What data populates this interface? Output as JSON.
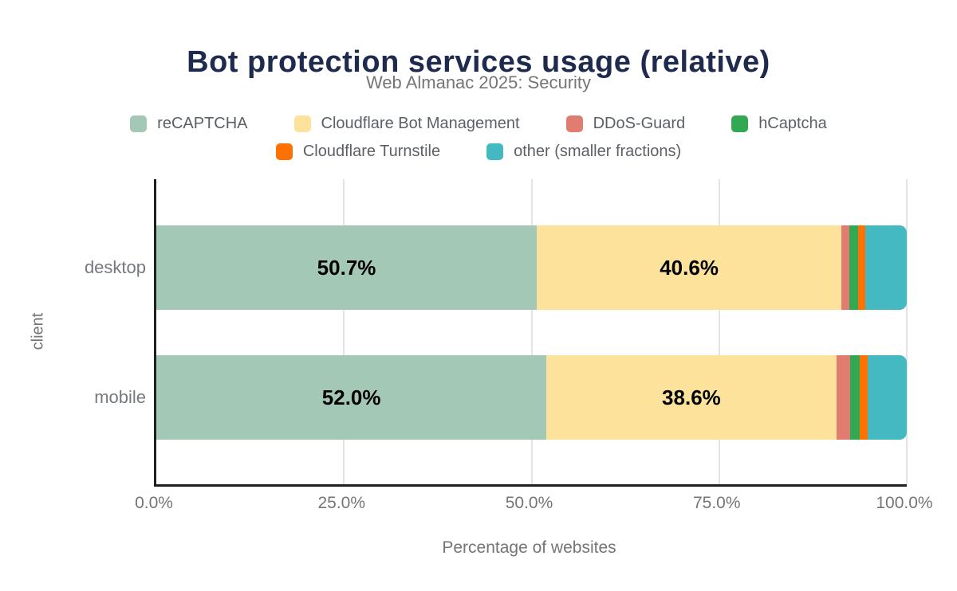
{
  "header": {
    "title": "Bot protection services usage (relative)",
    "subtitle": "Web Almanac 2025: Security"
  },
  "colors": {
    "title_navy": "#1f2b4e",
    "axis_text_gray": "#757575",
    "legend_text_gray": "#5c6066",
    "axis_line_black": "#1f1f1f",
    "gridline_gray": "#e4e4e4",
    "bar_label_black": "#000000"
  },
  "chart_data": {
    "type": "bar",
    "orientation": "horizontal",
    "stacked": true,
    "title": "Bot protection services usage (relative)",
    "subtitle": "Web Almanac 2025: Security",
    "xlabel": "Percentage of websites",
    "ylabel": "client",
    "xlim": [
      0,
      100
    ],
    "grid": true,
    "legend_position": "top",
    "categories": [
      "desktop",
      "mobile"
    ],
    "series": [
      {
        "name": "reCAPTCHA",
        "color": "#a4c8b6",
        "values": [
          50.7,
          52.0
        ],
        "value_labels": [
          "50.7%",
          "52.0%"
        ]
      },
      {
        "name": "Cloudflare Bot Management",
        "color": "#fde29b",
        "values": [
          40.6,
          38.6
        ],
        "value_labels": [
          "40.6%",
          "38.6%"
        ]
      },
      {
        "name": "DDoS-Guard",
        "color": "#e17c70",
        "values": [
          1.1,
          1.9
        ],
        "value_labels": [
          "",
          ""
        ]
      },
      {
        "name": "hCaptcha",
        "color": "#32a852",
        "values": [
          1.1,
          1.2
        ],
        "value_labels": [
          "",
          ""
        ]
      },
      {
        "name": "Cloudflare Turnstile",
        "color": "#ff7100",
        "values": [
          1.0,
          1.1
        ],
        "value_labels": [
          "",
          ""
        ]
      },
      {
        "name": "other (smaller fractions)",
        "color": "#45b9c2",
        "values": [
          5.5,
          5.2
        ],
        "value_labels": [
          "",
          ""
        ]
      }
    ],
    "x_ticks": [
      {
        "label": "0.0%",
        "percent": 0
      },
      {
        "label": "25.0%",
        "percent": 25
      },
      {
        "label": "50.0%",
        "percent": 50
      },
      {
        "label": "75.0%",
        "percent": 75
      },
      {
        "label": "100.0%",
        "percent": 100
      }
    ]
  }
}
